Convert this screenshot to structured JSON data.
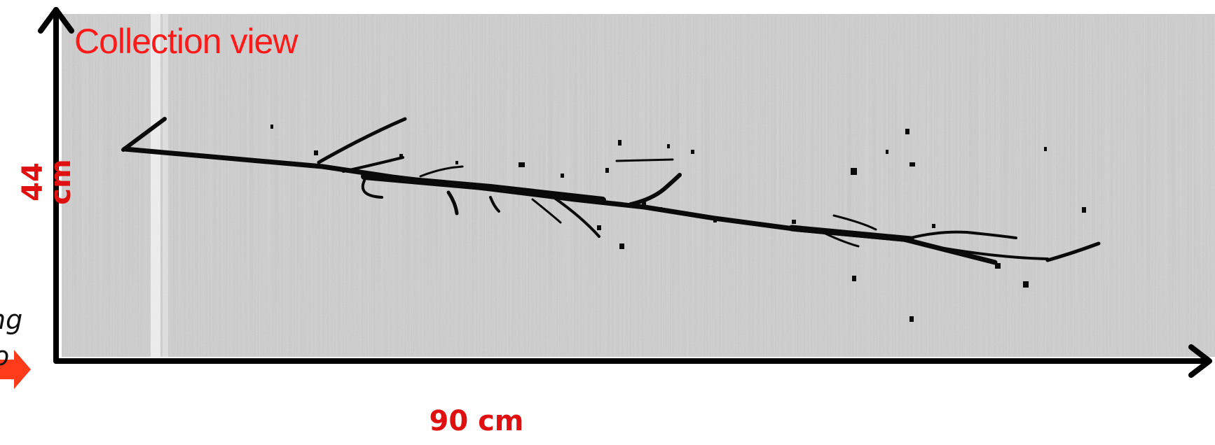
{
  "figure": {
    "panel_title": "Collection view",
    "y_axis_label": "44 cm",
    "x_axis_label": "90 cm",
    "side_text": [
      "ng",
      "o"
    ]
  },
  "colors": {
    "label_red": "#e01010",
    "axis": "#000000",
    "arrow": "#ff3b1a",
    "background_gray": "#c4c4c4",
    "track": "#0a0a0a"
  }
}
